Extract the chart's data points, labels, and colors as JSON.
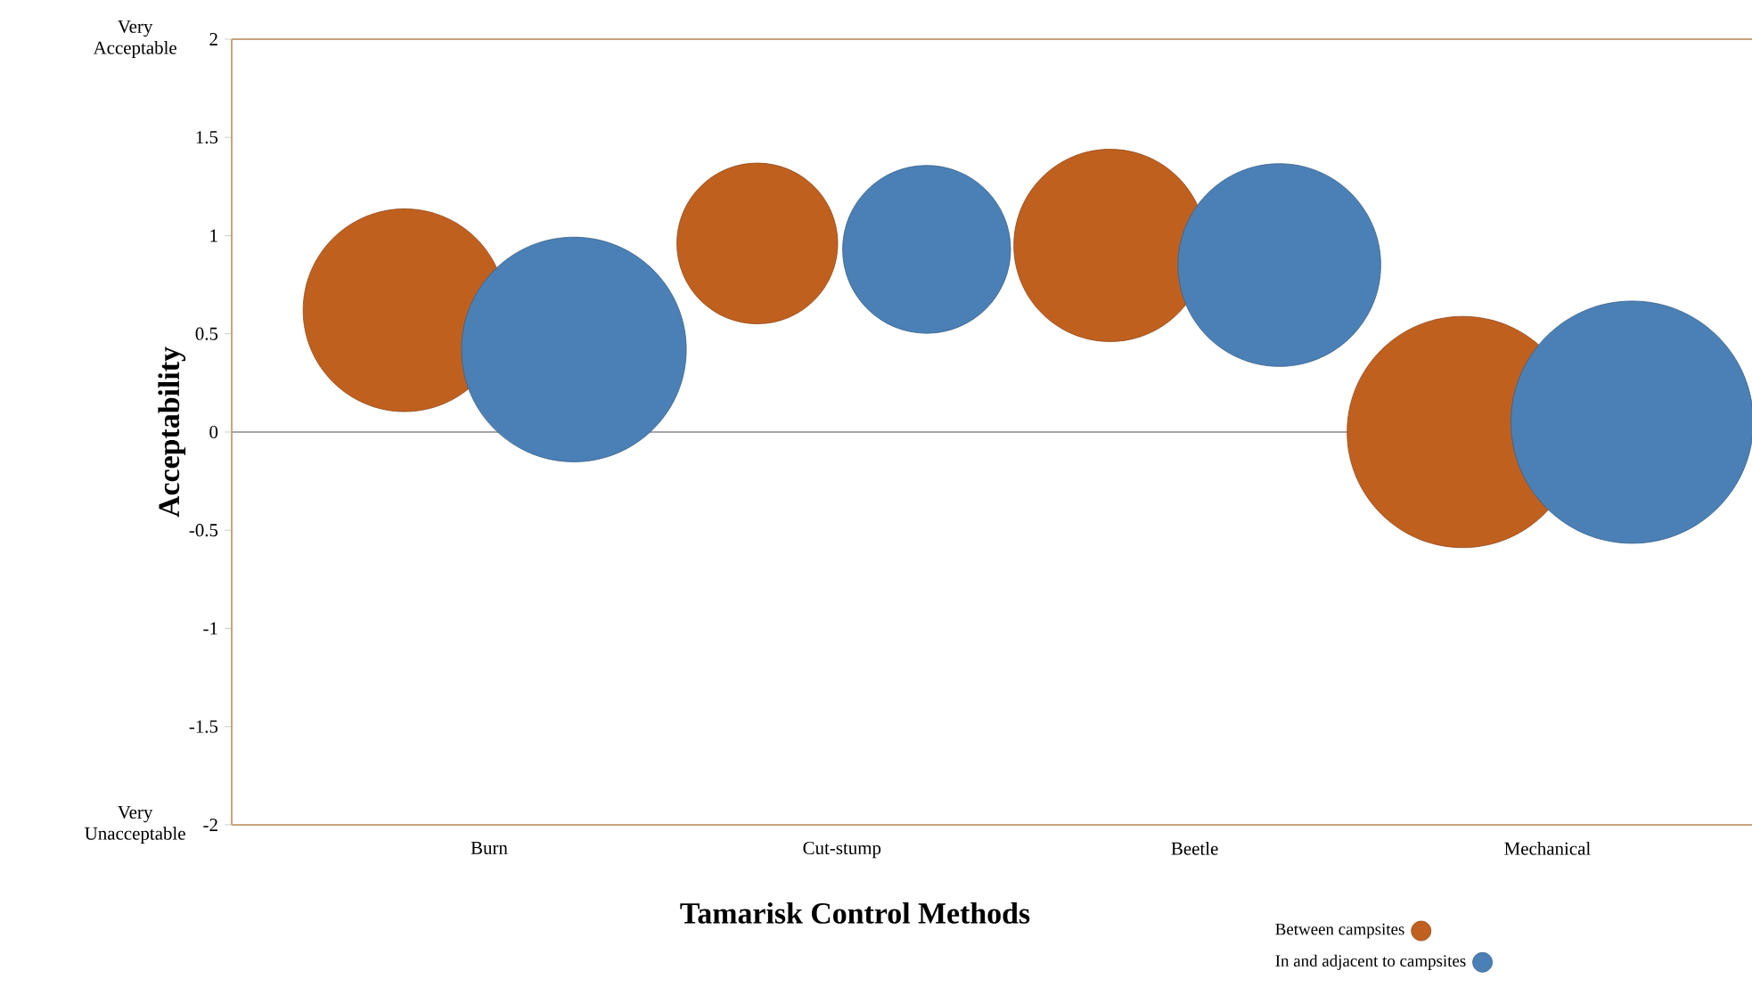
{
  "chart_data": {
    "type": "bubble",
    "xlabel": "Tamarisk Control Methods",
    "ylabel": "Acceptability",
    "categories": [
      "Burn",
      "Cut-stump",
      "Beetle",
      "Mechanical"
    ],
    "ylim": [
      -2,
      2
    ],
    "yticks": [
      -2,
      -1.5,
      -1,
      -0.5,
      0,
      0.5,
      1,
      1.5,
      2
    ],
    "legend": "bottom right",
    "annotations": [
      "Very Acceptable",
      "Very Unacceptable"
    ],
    "ref_lines": [
      {
        "axis": "y",
        "value": 0,
        "color": "#a6a6a6"
      }
    ],
    "series": [
      {
        "name": "Between campsites",
        "color": "#c0601f",
        "values": [
          0.62,
          0.96,
          0.95,
          0.0
        ],
        "sizes": [
          0.7,
          0.44,
          0.63,
          0.91
        ]
      },
      {
        "name": "In and adjacent to campsites",
        "color": "#4a80b5",
        "values": [
          0.42,
          0.93,
          0.85,
          0.05
        ],
        "sizes": [
          0.86,
          0.48,
          0.7,
          1.0
        ]
      }
    ]
  }
}
